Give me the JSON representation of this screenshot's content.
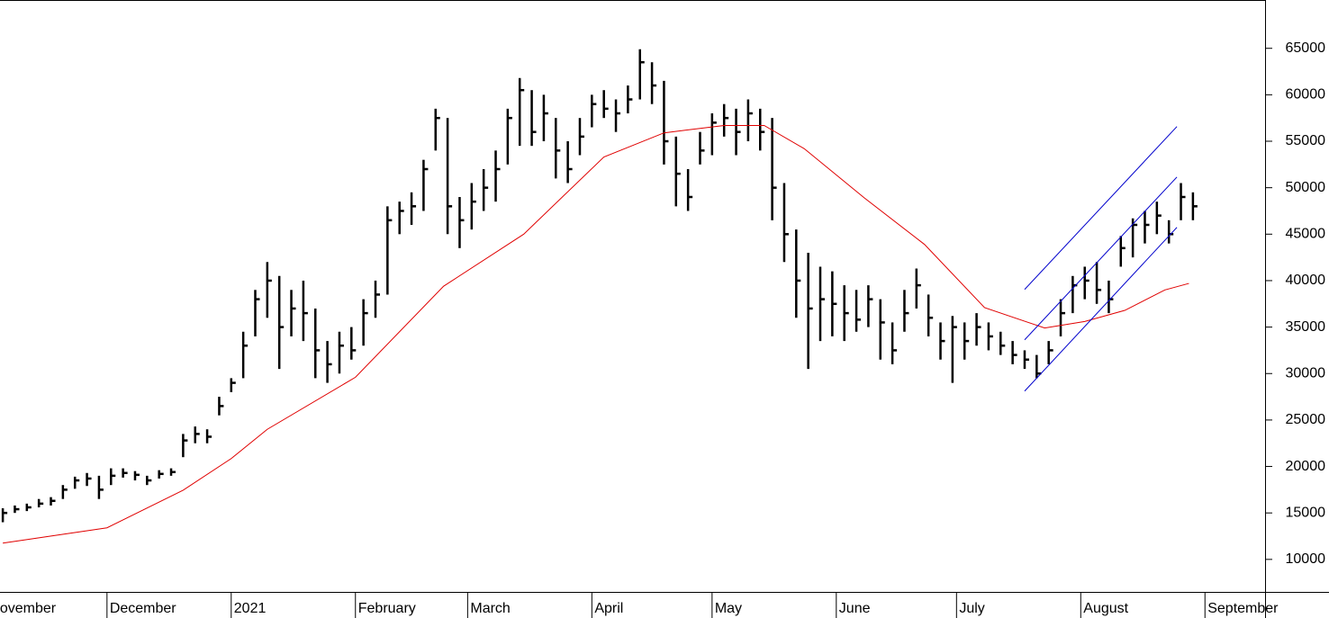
{
  "chart_data": {
    "type": "ohlc",
    "xlim": [
      -0.7,
      315
    ],
    "ylim": [
      6500,
      70200
    ],
    "xticks": [
      {
        "value": -4,
        "label": "November"
      },
      {
        "value": 26,
        "label": "December"
      },
      {
        "value": 57,
        "label": "2021"
      },
      {
        "value": 88,
        "label": "February"
      },
      {
        "value": 116,
        "label": "March"
      },
      {
        "value": 147,
        "label": "April"
      },
      {
        "value": 177,
        "label": "May"
      },
      {
        "value": 208,
        "label": "June"
      },
      {
        "value": 238,
        "label": "July"
      },
      {
        "value": 269,
        "label": "August"
      },
      {
        "value": 300,
        "label": "September"
      }
    ],
    "yticks": [
      10000,
      15000,
      20000,
      25000,
      30000,
      35000,
      40000,
      45000,
      50000,
      55000,
      60000,
      65000
    ],
    "bars": {
      "color": "#000000",
      "x": [
        0,
        3,
        6,
        9,
        12,
        15,
        18,
        21,
        24,
        27,
        30,
        33,
        36,
        39,
        42,
        45,
        48,
        51,
        54,
        57,
        60,
        63,
        66,
        69,
        72,
        75,
        78,
        81,
        84,
        87,
        90,
        93,
        96,
        99,
        102,
        105,
        108,
        111,
        114,
        117,
        120,
        123,
        126,
        129,
        132,
        135,
        138,
        141,
        144,
        147,
        150,
        153,
        156,
        159,
        162,
        165,
        168,
        171,
        174,
        177,
        180,
        183,
        186,
        189,
        192,
        195,
        198,
        201,
        204,
        207,
        210,
        213,
        216,
        219,
        222,
        225,
        228,
        231,
        234,
        237,
        240,
        243,
        246,
        249,
        252,
        255,
        258,
        261,
        264,
        267,
        270,
        273,
        276,
        279,
        282,
        285,
        288,
        291,
        294,
        297
      ],
      "close": [
        15000,
        15400,
        15600,
        16000,
        16300,
        17500,
        18500,
        18700,
        17500,
        19000,
        19300,
        19100,
        18500,
        19200,
        19400,
        22800,
        23500,
        23200,
        26500,
        29000,
        33000,
        38000,
        40000,
        35000,
        37000,
        36500,
        32500,
        31000,
        33000,
        32500,
        36500,
        38500,
        46500,
        47500,
        48000,
        52000,
        57500,
        48000,
        46500,
        48500,
        50000,
        52000,
        57500,
        60500,
        56000,
        58000,
        54000,
        52000,
        55500,
        59000,
        58500,
        58000,
        59500,
        63500,
        61000,
        55000,
        51500,
        49000,
        54000,
        57000,
        57500,
        56000,
        58000,
        56000,
        50000,
        45000,
        40000,
        37000,
        38000,
        37500,
        36500,
        35800,
        38000,
        35500,
        32500,
        36500,
        39500,
        36000,
        33500,
        35000,
        33500,
        35000,
        34000,
        33000,
        32000,
        31500,
        30000,
        32500,
        36500,
        39500,
        40000,
        39000,
        38000,
        43500,
        46000,
        46000,
        47000,
        45000,
        49000,
        48000
      ],
      "high": [
        15500,
        15800,
        16000,
        16500,
        16700,
        18000,
        18900,
        19300,
        19000,
        19800,
        19800,
        19500,
        19000,
        19600,
        19800,
        23500,
        24300,
        24000,
        27500,
        29500,
        34500,
        39000,
        42000,
        40500,
        39000,
        40000,
        37000,
        33500,
        34500,
        35000,
        38000,
        40000,
        48000,
        48500,
        49500,
        53000,
        58500,
        57500,
        49000,
        50500,
        52000,
        54000,
        58500,
        61800,
        60500,
        60000,
        57500,
        55000,
        57500,
        60000,
        60500,
        59500,
        61000,
        64900,
        63500,
        61500,
        55500,
        52000,
        56000,
        58000,
        59000,
        58500,
        59500,
        58500,
        57500,
        50500,
        45500,
        43000,
        41500,
        41000,
        39500,
        39000,
        39500,
        38000,
        35500,
        39000,
        41300,
        38500,
        35500,
        36200,
        35500,
        36500,
        35500,
        34500,
        33500,
        32500,
        32000,
        33500,
        38000,
        40500,
        41500,
        42000,
        40000,
        44800,
        46700,
        47500,
        48500,
        46500,
        50500,
        49500
      ],
      "low": [
        14000,
        15000,
        15200,
        15600,
        15800,
        16500,
        17600,
        17900,
        16500,
        18000,
        18800,
        18500,
        18000,
        18700,
        19000,
        21000,
        22500,
        22500,
        25500,
        28000,
        29500,
        34000,
        36000,
        30500,
        34000,
        33500,
        29500,
        29000,
        30000,
        31500,
        33000,
        36000,
        38500,
        45000,
        46000,
        47500,
        54000,
        45000,
        43500,
        45500,
        47500,
        48500,
        52500,
        54500,
        54500,
        55000,
        51000,
        50500,
        53500,
        56500,
        57500,
        56000,
        58000,
        59500,
        59000,
        52500,
        48000,
        47500,
        52500,
        53500,
        55500,
        53500,
        55000,
        54000,
        46500,
        42000,
        36000,
        30500,
        33500,
        34000,
        33500,
        34500,
        35000,
        31500,
        31000,
        34500,
        37000,
        34000,
        31500,
        29000,
        31500,
        33000,
        32500,
        32000,
        31000,
        30500,
        29500,
        31000,
        34000,
        36500,
        38000,
        37500,
        36500,
        41500,
        42500,
        44000,
        45000,
        44000,
        46500,
        46500
      ]
    },
    "moving_average": {
      "color": "#e00000",
      "x": [
        0,
        26,
        45,
        57,
        66,
        88,
        110,
        130,
        150,
        165,
        180,
        190,
        200,
        215,
        230,
        245,
        260,
        270,
        280,
        290,
        296
      ],
      "values": [
        11750,
        13400,
        17450,
        20850,
        24000,
        29600,
        39400,
        45000,
        53300,
        55900,
        56700,
        56700,
        54200,
        48900,
        43900,
        37100,
        34900,
        35600,
        36800,
        39000,
        39700
      ]
    },
    "channel": {
      "color": "#0000cc",
      "lines": [
        {
          "x": [
            255,
            293
          ],
          "values": [
            39050,
            56580
          ]
        },
        {
          "x": [
            255,
            293
          ],
          "values": [
            33630,
            51150
          ]
        },
        {
          "x": [
            255,
            293
          ],
          "values": [
            28110,
            45730
          ]
        }
      ]
    }
  }
}
